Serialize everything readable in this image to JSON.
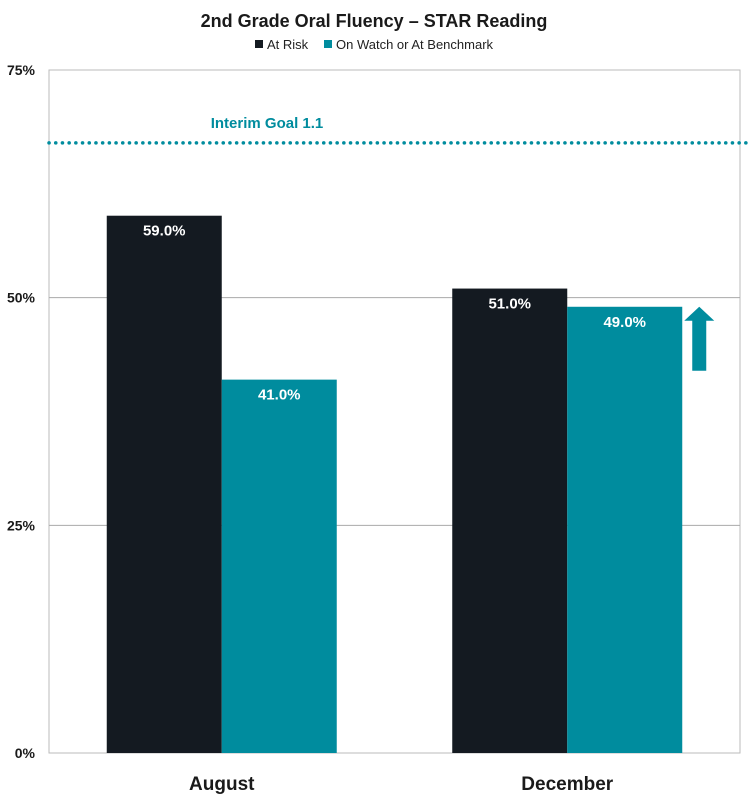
{
  "chart_data": {
    "type": "bar",
    "title": "2nd Grade Oral Fluency – STAR Reading",
    "categories": [
      "August",
      "December"
    ],
    "series": [
      {
        "name": "At Risk",
        "values": [
          59.0,
          51.0
        ],
        "labels": [
          "59.0%",
          "51.0%"
        ],
        "color": "#141a21"
      },
      {
        "name": "On Watch or At Benchmark",
        "values": [
          41.0,
          49.0
        ],
        "labels": [
          "41.0%",
          "49.0%"
        ],
        "color": "#008c9e"
      }
    ],
    "ylim": [
      0,
      75
    ],
    "yticks": [
      0,
      25,
      50,
      75
    ],
    "ytick_labels": [
      "0%",
      "25%",
      "50%",
      "75%"
    ],
    "grid": true,
    "legend": "top-center",
    "reference_line": {
      "label": "Interim Goal 1.1",
      "value": 67,
      "style": "dotted",
      "color": "#008c9e"
    },
    "annotation": {
      "type": "up-arrow",
      "category": "December",
      "color": "#008c9e"
    }
  }
}
